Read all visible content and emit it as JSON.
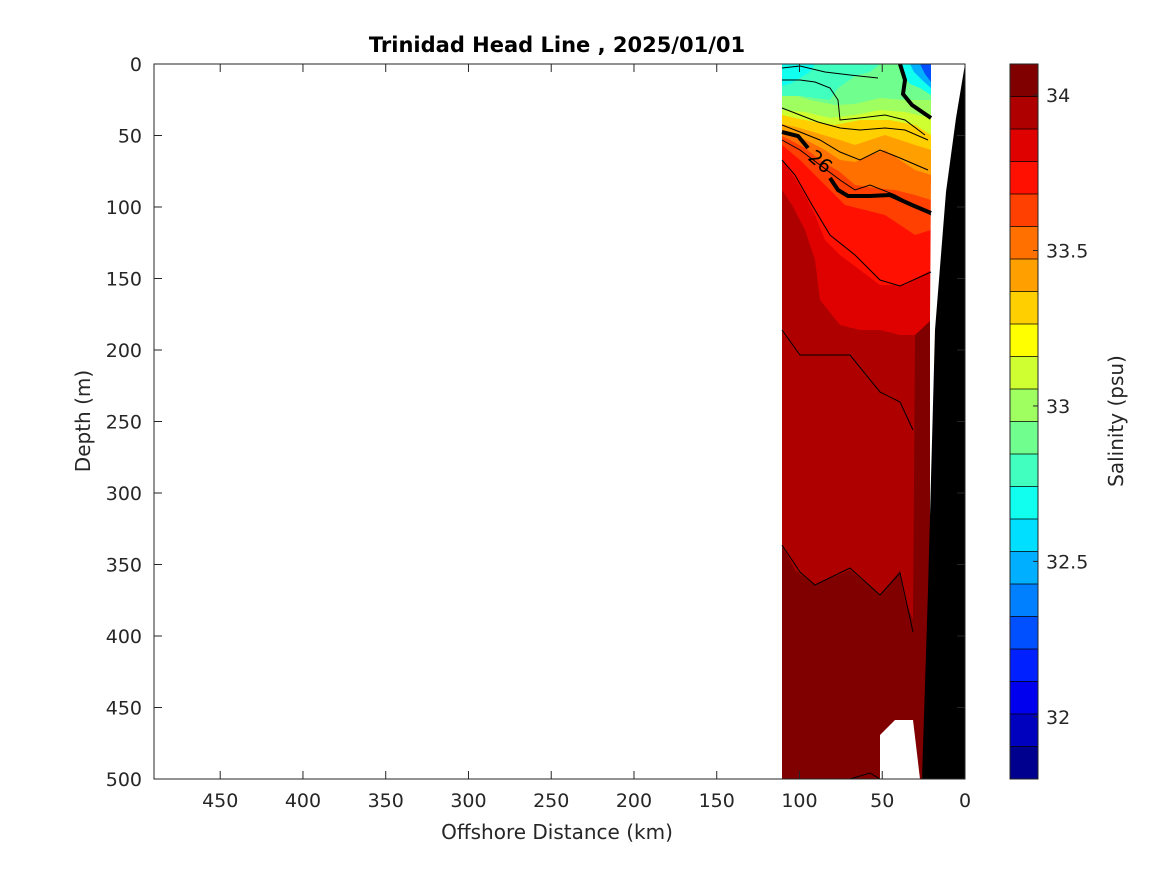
{
  "chart_data": {
    "type": "heatmap",
    "title": "Trinidad Head Line , 2025/01/01",
    "xlabel": "Offshore Distance (km)",
    "ylabel": "Depth (m)",
    "colorbar_label": "Salinity (psu)",
    "xlim": [
      490,
      0
    ],
    "ylim": [
      0,
      500
    ],
    "x_reversed": true,
    "y_reversed": true,
    "x_ticks": [
      450,
      400,
      350,
      300,
      250,
      200,
      150,
      100,
      50,
      0
    ],
    "y_ticks": [
      0,
      50,
      100,
      150,
      200,
      250,
      300,
      350,
      400,
      450,
      500
    ],
    "colorbar": {
      "range": [
        31.8,
        34.1
      ],
      "ticks": [
        32,
        32.5,
        33,
        33.5,
        34
      ],
      "levels": [
        31.8,
        31.9,
        32.0,
        32.1,
        32.2,
        32.3,
        32.4,
        32.5,
        32.6,
        32.7,
        32.8,
        32.9,
        33.0,
        33.1,
        33.2,
        33.3,
        33.4,
        33.5,
        33.6,
        33.7,
        33.8,
        33.9,
        34.0,
        34.1
      ],
      "colors": [
        "#00008f",
        "#0000bf",
        "#0000ef",
        "#0020ff",
        "#0050ff",
        "#0080ff",
        "#00afff",
        "#00dfff",
        "#10ffef",
        "#40ffbf",
        "#70ff8f",
        "#9fff60",
        "#cfff30",
        "#ffff00",
        "#ffcf00",
        "#ff9f00",
        "#ff7000",
        "#ff4000",
        "#ff1000",
        "#df0000",
        "#af0000",
        "#800000"
      ]
    },
    "section": {
      "bands": [
        {
          "depth_range": [
            0,
            30
          ],
          "salinity": 32.85
        },
        {
          "depth_range": [
            30,
            50
          ],
          "salinity": 33.1
        },
        {
          "depth_range": [
            50,
            70
          ],
          "salinity": 33.45
        },
        {
          "depth_range": [
            70,
            100
          ],
          "salinity": 33.7
        },
        {
          "depth_range": [
            100,
            200
          ],
          "salinity": 33.85
        },
        {
          "depth_range": [
            200,
            350
          ],
          "salinity": 33.95
        },
        {
          "depth_range": [
            350,
            500
          ],
          "salinity": 34.05
        }
      ],
      "inshore_patch_salinity": 32.4,
      "contour_labels": [
        {
          "text": "26",
          "x": 87,
          "depth": 68
        }
      ],
      "bathymetry": [
        [
          25,
          500
        ],
        [
          27,
          300
        ],
        [
          32,
          150
        ],
        [
          37,
          100
        ],
        [
          45,
          25
        ],
        [
          45,
          0
        ]
      ]
    }
  }
}
